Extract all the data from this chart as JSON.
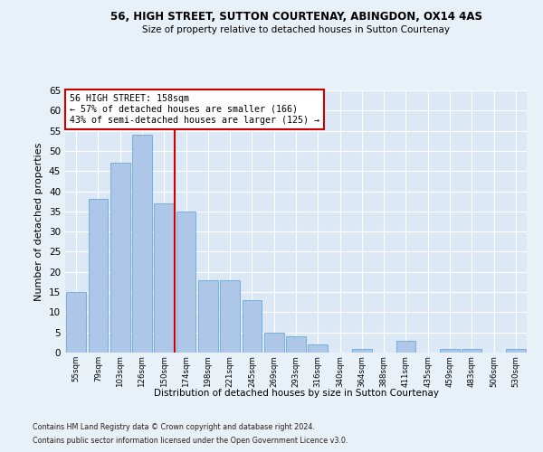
{
  "title1": "56, HIGH STREET, SUTTON COURTENAY, ABINGDON, OX14 4AS",
  "title2": "Size of property relative to detached houses in Sutton Courtenay",
  "xlabel": "Distribution of detached houses by size in Sutton Courtenay",
  "ylabel": "Number of detached properties",
  "categories": [
    "55sqm",
    "79sqm",
    "103sqm",
    "126sqm",
    "150sqm",
    "174sqm",
    "198sqm",
    "221sqm",
    "245sqm",
    "269sqm",
    "293sqm",
    "316sqm",
    "340sqm",
    "364sqm",
    "388sqm",
    "411sqm",
    "435sqm",
    "459sqm",
    "483sqm",
    "506sqm",
    "530sqm"
  ],
  "values": [
    15,
    38,
    47,
    54,
    37,
    35,
    18,
    18,
    13,
    5,
    4,
    2,
    0,
    1,
    0,
    3,
    0,
    1,
    1,
    0,
    1
  ],
  "bar_color": "#aec6e8",
  "bar_edgecolor": "#6aaad4",
  "vline_x": 4.5,
  "vline_color": "#cc0000",
  "annotation_title": "56 HIGH STREET: 158sqm",
  "annotation_line1": "← 57% of detached houses are smaller (166)",
  "annotation_line2": "43% of semi-detached houses are larger (125) →",
  "annotation_box_color": "#cc0000",
  "ylim": [
    0,
    65
  ],
  "yticks": [
    0,
    5,
    10,
    15,
    20,
    25,
    30,
    35,
    40,
    45,
    50,
    55,
    60,
    65
  ],
  "footer1": "Contains HM Land Registry data © Crown copyright and database right 2024.",
  "footer2": "Contains public sector information licensed under the Open Government Licence v3.0.",
  "bg_color": "#e8f0f8",
  "plot_bg_color": "#dce8f5"
}
